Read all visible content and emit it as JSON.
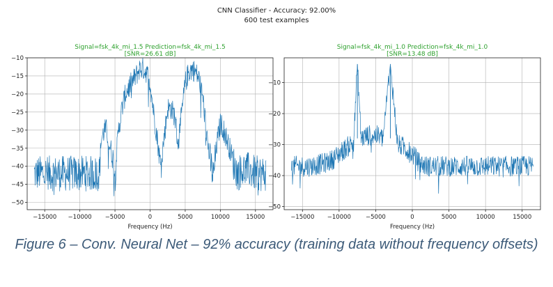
{
  "figure": {
    "suptitle_line1": "CNN Classifier - Accuracy: 92.00%",
    "suptitle_line2": "600 test examples"
  },
  "caption": "Figure 6 – Conv. Neural Net – 92% accuracy (training data without frequency offsets)",
  "colors": {
    "line": "#1f77b4",
    "title": "#2ca02c",
    "axes": "#222222",
    "grid": "#b0b0b0"
  },
  "chart_data": [
    {
      "type": "line",
      "title_line1": "Signal=fsk_4k_mi_1.5  Prediction=fsk_4k_mi_1.5",
      "title_line2": "[SNR=26.61 dB]",
      "xlabel": "Frequency (Hz)",
      "ylabel": "",
      "grid": true,
      "xlim": [
        -17500,
        17500
      ],
      "ylim": [
        -52,
        -10
      ],
      "xticks": [
        -15000,
        -10000,
        -5000,
        0,
        5000,
        10000,
        15000
      ],
      "xtick_labels": [
        "−15000",
        "−10000",
        "−5000",
        "0",
        "5000",
        "10000",
        "15000"
      ],
      "yticks": [
        -10,
        -15,
        -20,
        -25,
        -30,
        -35,
        -40,
        -45,
        -50
      ],
      "ytick_labels": [
        "−10",
        "−15",
        "−20",
        "−25",
        "−30",
        "−35",
        "−40",
        "−45",
        "−50"
      ],
      "series": [
        {
          "x": [
            -16500,
            -15000,
            -12000,
            -9000,
            -7200,
            -7000,
            -6500,
            -6200,
            -5800,
            -5500,
            -5000,
            -4500,
            -4000,
            -3500,
            -3000,
            -2000,
            -1500,
            -1000,
            -500,
            0,
            500,
            1000,
            1500,
            2000,
            2500,
            3000,
            3500,
            4000,
            5000,
            5500,
            6000,
            6500,
            7000,
            7500,
            8000,
            8500,
            9000,
            9500,
            10000,
            10500,
            11000,
            11500,
            12000,
            12500,
            13000,
            14000,
            15000,
            16000,
            16500
          ],
          "y": [
            -42,
            -42,
            -42,
            -42,
            -42,
            -33,
            -30,
            -30,
            -34,
            -36,
            -42,
            -30,
            -24,
            -20,
            -18,
            -15,
            -13,
            -13,
            -14,
            -17,
            -25,
            -32,
            -40,
            -32,
            -24,
            -24,
            -26,
            -34,
            -17,
            -14,
            -13,
            -14,
            -16,
            -21,
            -30,
            -38,
            -43,
            -34,
            -28,
            -30,
            -33,
            -36,
            -40,
            -42,
            -41,
            -41,
            -42,
            -42,
            -42
          ]
        }
      ]
    },
    {
      "type": "line",
      "title_line1": "Signal=fsk_4k_mi_1.0  Prediction=fsk_4k_mi_1.0",
      "title_line2": "[SNR=13.48 dB]",
      "xlabel": "Frequency (Hz)",
      "ylabel": "",
      "grid": true,
      "xlim": [
        -17500,
        17500
      ],
      "ylim": [
        -51,
        -2
      ],
      "xticks": [
        -15000,
        -10000,
        -5000,
        0,
        5000,
        10000,
        15000
      ],
      "xtick_labels": [
        "−15000",
        "−10000",
        "−5000",
        "0",
        "5000",
        "10000",
        "15000"
      ],
      "yticks": [
        -10,
        -20,
        -30,
        -40,
        -50
      ],
      "ytick_labels": [
        "−10",
        "−20",
        "−30",
        "−40",
        "−50"
      ],
      "series": [
        {
          "x": [
            -16500,
            -14000,
            -12000,
            -11000,
            -10000,
            -9000,
            -8000,
            -7500,
            -7000,
            -6000,
            -5000,
            -4000,
            -3000,
            -2000,
            -1000,
            0,
            1000,
            2000,
            4000,
            6000,
            8000,
            10000,
            12000,
            14000,
            16500
          ],
          "y": [
            -37,
            -37,
            -36,
            -35,
            -33,
            -31,
            -29,
            -4,
            -28,
            -27,
            -27,
            -28,
            -4,
            -30,
            -31,
            -33,
            -36,
            -37,
            -37,
            -37,
            -37,
            -37,
            -37,
            -37,
            -37
          ]
        }
      ]
    }
  ]
}
